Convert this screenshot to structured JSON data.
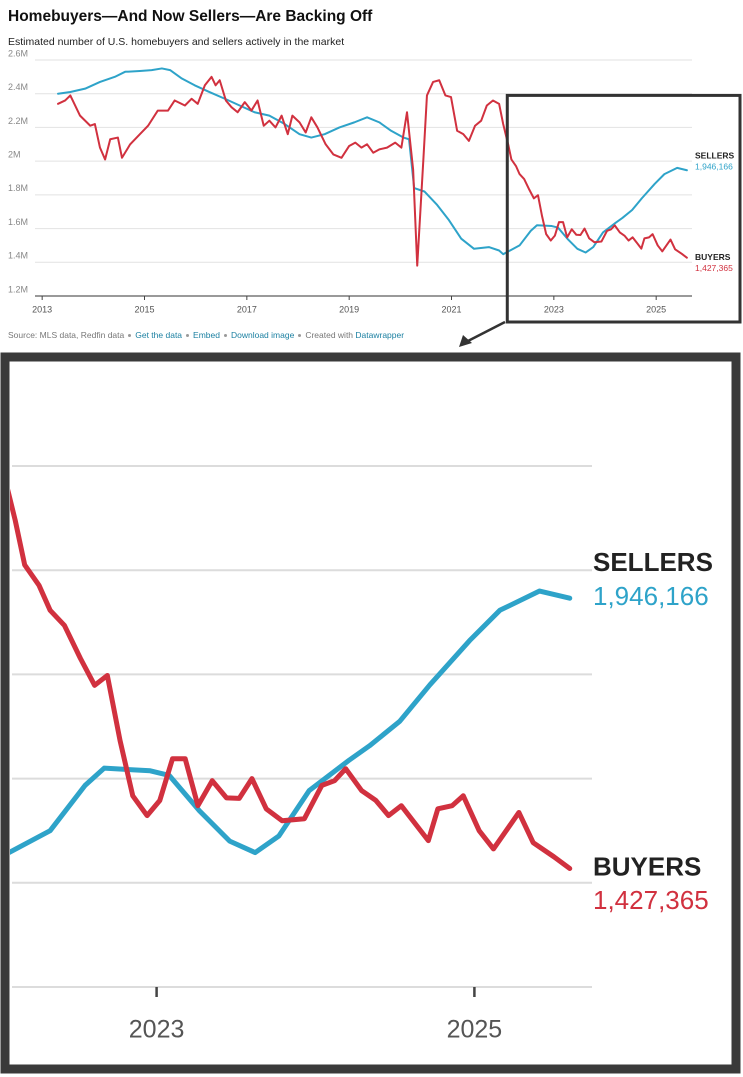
{
  "chart_data": {
    "type": "line",
    "title": "Homebuyers—And Now Sellers—Are Backing Off",
    "subtitle": "Estimated number of U.S. homebuyers and sellers actively in the market",
    "source": "Source: MLS data, Redfin data",
    "links": [
      "Get the data",
      "Embed",
      "Download image"
    ],
    "credit": "Created with",
    "credit_link": "Datawrapper",
    "xlim": [
      2012.86,
      2025.7
    ],
    "xticks": [
      2013,
      2015,
      2017,
      2019,
      2021,
      2023,
      2025
    ],
    "ylim": [
      1200000,
      2600000
    ],
    "yticks": [
      {
        "value": 1200000,
        "label": "1.2M"
      },
      {
        "value": 1400000,
        "label": "1.4M"
      },
      {
        "value": 1600000,
        "label": "1.6M"
      },
      {
        "value": 1800000,
        "label": "1.8M"
      },
      {
        "value": 2000000,
        "label": "2M"
      },
      {
        "value": 2200000,
        "label": "2.2M"
      },
      {
        "value": 2400000,
        "label": "2.4M"
      },
      {
        "value": 2600000,
        "label": "2.6M"
      }
    ],
    "grid": true,
    "inset": {
      "xlim": [
        2022.09,
        2026.64
      ],
      "ylim": [
        1200000,
        2390000
      ]
    },
    "series": [
      {
        "name": "SELLERS",
        "color": "#2ea3c9",
        "x": [
          2013.31,
          2013.55,
          2013.84,
          2014.13,
          2014.42,
          2014.62,
          2014.91,
          2015.14,
          2015.34,
          2015.5,
          2015.73,
          2015.98,
          2016.27,
          2016.57,
          2016.86,
          2017.15,
          2017.44,
          2017.74,
          2018.03,
          2018.26,
          2018.52,
          2018.81,
          2019.1,
          2019.35,
          2019.59,
          2019.82,
          2020.06,
          2020.17,
          2020.27,
          2020.47,
          2020.72,
          2020.95,
          2021.19,
          2021.44,
          2021.73,
          2021.93,
          2022.01,
          2022.33,
          2022.55,
          2022.67,
          2022.96,
          2023.08,
          2023.27,
          2023.46,
          2023.62,
          2023.77,
          2023.96,
          2024.21,
          2024.34,
          2024.53,
          2024.72,
          2024.97,
          2025.16,
          2025.41,
          2025.6
        ],
        "values": [
          2400000,
          2410000,
          2430000,
          2470000,
          2500000,
          2530000,
          2535000,
          2540000,
          2550000,
          2540000,
          2490000,
          2450000,
          2410000,
          2370000,
          2330000,
          2290000,
          2270000,
          2220000,
          2160000,
          2140000,
          2160000,
          2200000,
          2230000,
          2260000,
          2230000,
          2180000,
          2140000,
          2130000,
          1840000,
          1820000,
          1740000,
          1650000,
          1540000,
          1480000,
          1490000,
          1470000,
          1448000,
          1500000,
          1587000,
          1620000,
          1615000,
          1606000,
          1538000,
          1480000,
          1458000,
          1490000,
          1577000,
          1635000,
          1663000,
          1710000,
          1780000,
          1865000,
          1923000,
          1960000,
          1946166
        ],
        "value_labels": {
          "54": "1,946,166"
        }
      },
      {
        "name": "BUYERS",
        "color": "#d1313f",
        "x": [
          2013.31,
          2013.45,
          2013.55,
          2013.74,
          2013.94,
          2014.03,
          2014.13,
          2014.23,
          2014.33,
          2014.48,
          2014.56,
          2014.72,
          2014.91,
          2015.07,
          2015.26,
          2015.46,
          2015.59,
          2015.79,
          2015.92,
          2016.04,
          2016.18,
          2016.31,
          2016.39,
          2016.47,
          2016.59,
          2016.7,
          2016.82,
          2016.96,
          2017.09,
          2017.21,
          2017.33,
          2017.44,
          2017.56,
          2017.68,
          2017.8,
          2017.89,
          2018.03,
          2018.15,
          2018.26,
          2018.38,
          2018.54,
          2018.69,
          2018.85,
          2019.0,
          2019.12,
          2019.24,
          2019.35,
          2019.47,
          2019.59,
          2019.74,
          2019.9,
          2020.02,
          2020.13,
          2020.25,
          2020.33,
          2020.45,
          2020.52,
          2020.64,
          2020.76,
          2020.88,
          2020.99,
          2021.11,
          2021.23,
          2021.34,
          2021.46,
          2021.58,
          2021.69,
          2021.81,
          2021.93,
          2022.01,
          2022.11,
          2022.17,
          2022.26,
          2022.33,
          2022.42,
          2022.52,
          2022.61,
          2022.69,
          2022.77,
          2022.85,
          2022.94,
          2023.02,
          2023.1,
          2023.18,
          2023.26,
          2023.35,
          2023.44,
          2023.52,
          2023.6,
          2023.69,
          2023.79,
          2023.93,
          2024.04,
          2024.12,
          2024.19,
          2024.29,
          2024.38,
          2024.46,
          2024.54,
          2024.71,
          2024.77,
          2024.86,
          2024.93,
          2025.03,
          2025.12,
          2025.28,
          2025.37,
          2025.5,
          2025.6
        ],
        "values": [
          2340000,
          2360000,
          2390000,
          2270000,
          2210000,
          2220000,
          2080000,
          2010000,
          2130000,
          2140000,
          2020000,
          2100000,
          2160000,
          2210000,
          2300000,
          2300000,
          2360000,
          2330000,
          2370000,
          2340000,
          2450000,
          2500000,
          2450000,
          2480000,
          2360000,
          2320000,
          2290000,
          2350000,
          2300000,
          2360000,
          2210000,
          2240000,
          2200000,
          2270000,
          2160000,
          2270000,
          2230000,
          2170000,
          2260000,
          2200000,
          2100000,
          2040000,
          2020000,
          2090000,
          2110000,
          2080000,
          2100000,
          2050000,
          2070000,
          2080000,
          2110000,
          2080000,
          2290000,
          1950000,
          1380000,
          2010000,
          2390000,
          2470000,
          2480000,
          2390000,
          2380000,
          2180000,
          2160000,
          2120000,
          2210000,
          2240000,
          2330000,
          2360000,
          2340000,
          2220000,
          2096000,
          2010000,
          1971000,
          1923000,
          1894000,
          1831000,
          1779000,
          1798000,
          1673000,
          1567000,
          1529000,
          1558000,
          1638000,
          1638000,
          1548000,
          1596000,
          1563000,
          1562000,
          1600000,
          1542000,
          1519000,
          1523000,
          1587000,
          1596000,
          1619000,
          1577000,
          1558000,
          1529000,
          1548000,
          1481000,
          1542000,
          1548000,
          1567000,
          1500000,
          1465000,
          1535000,
          1477000,
          1450000,
          1427365
        ],
        "value_labels": {
          "108": "1,427,365"
        }
      }
    ]
  }
}
